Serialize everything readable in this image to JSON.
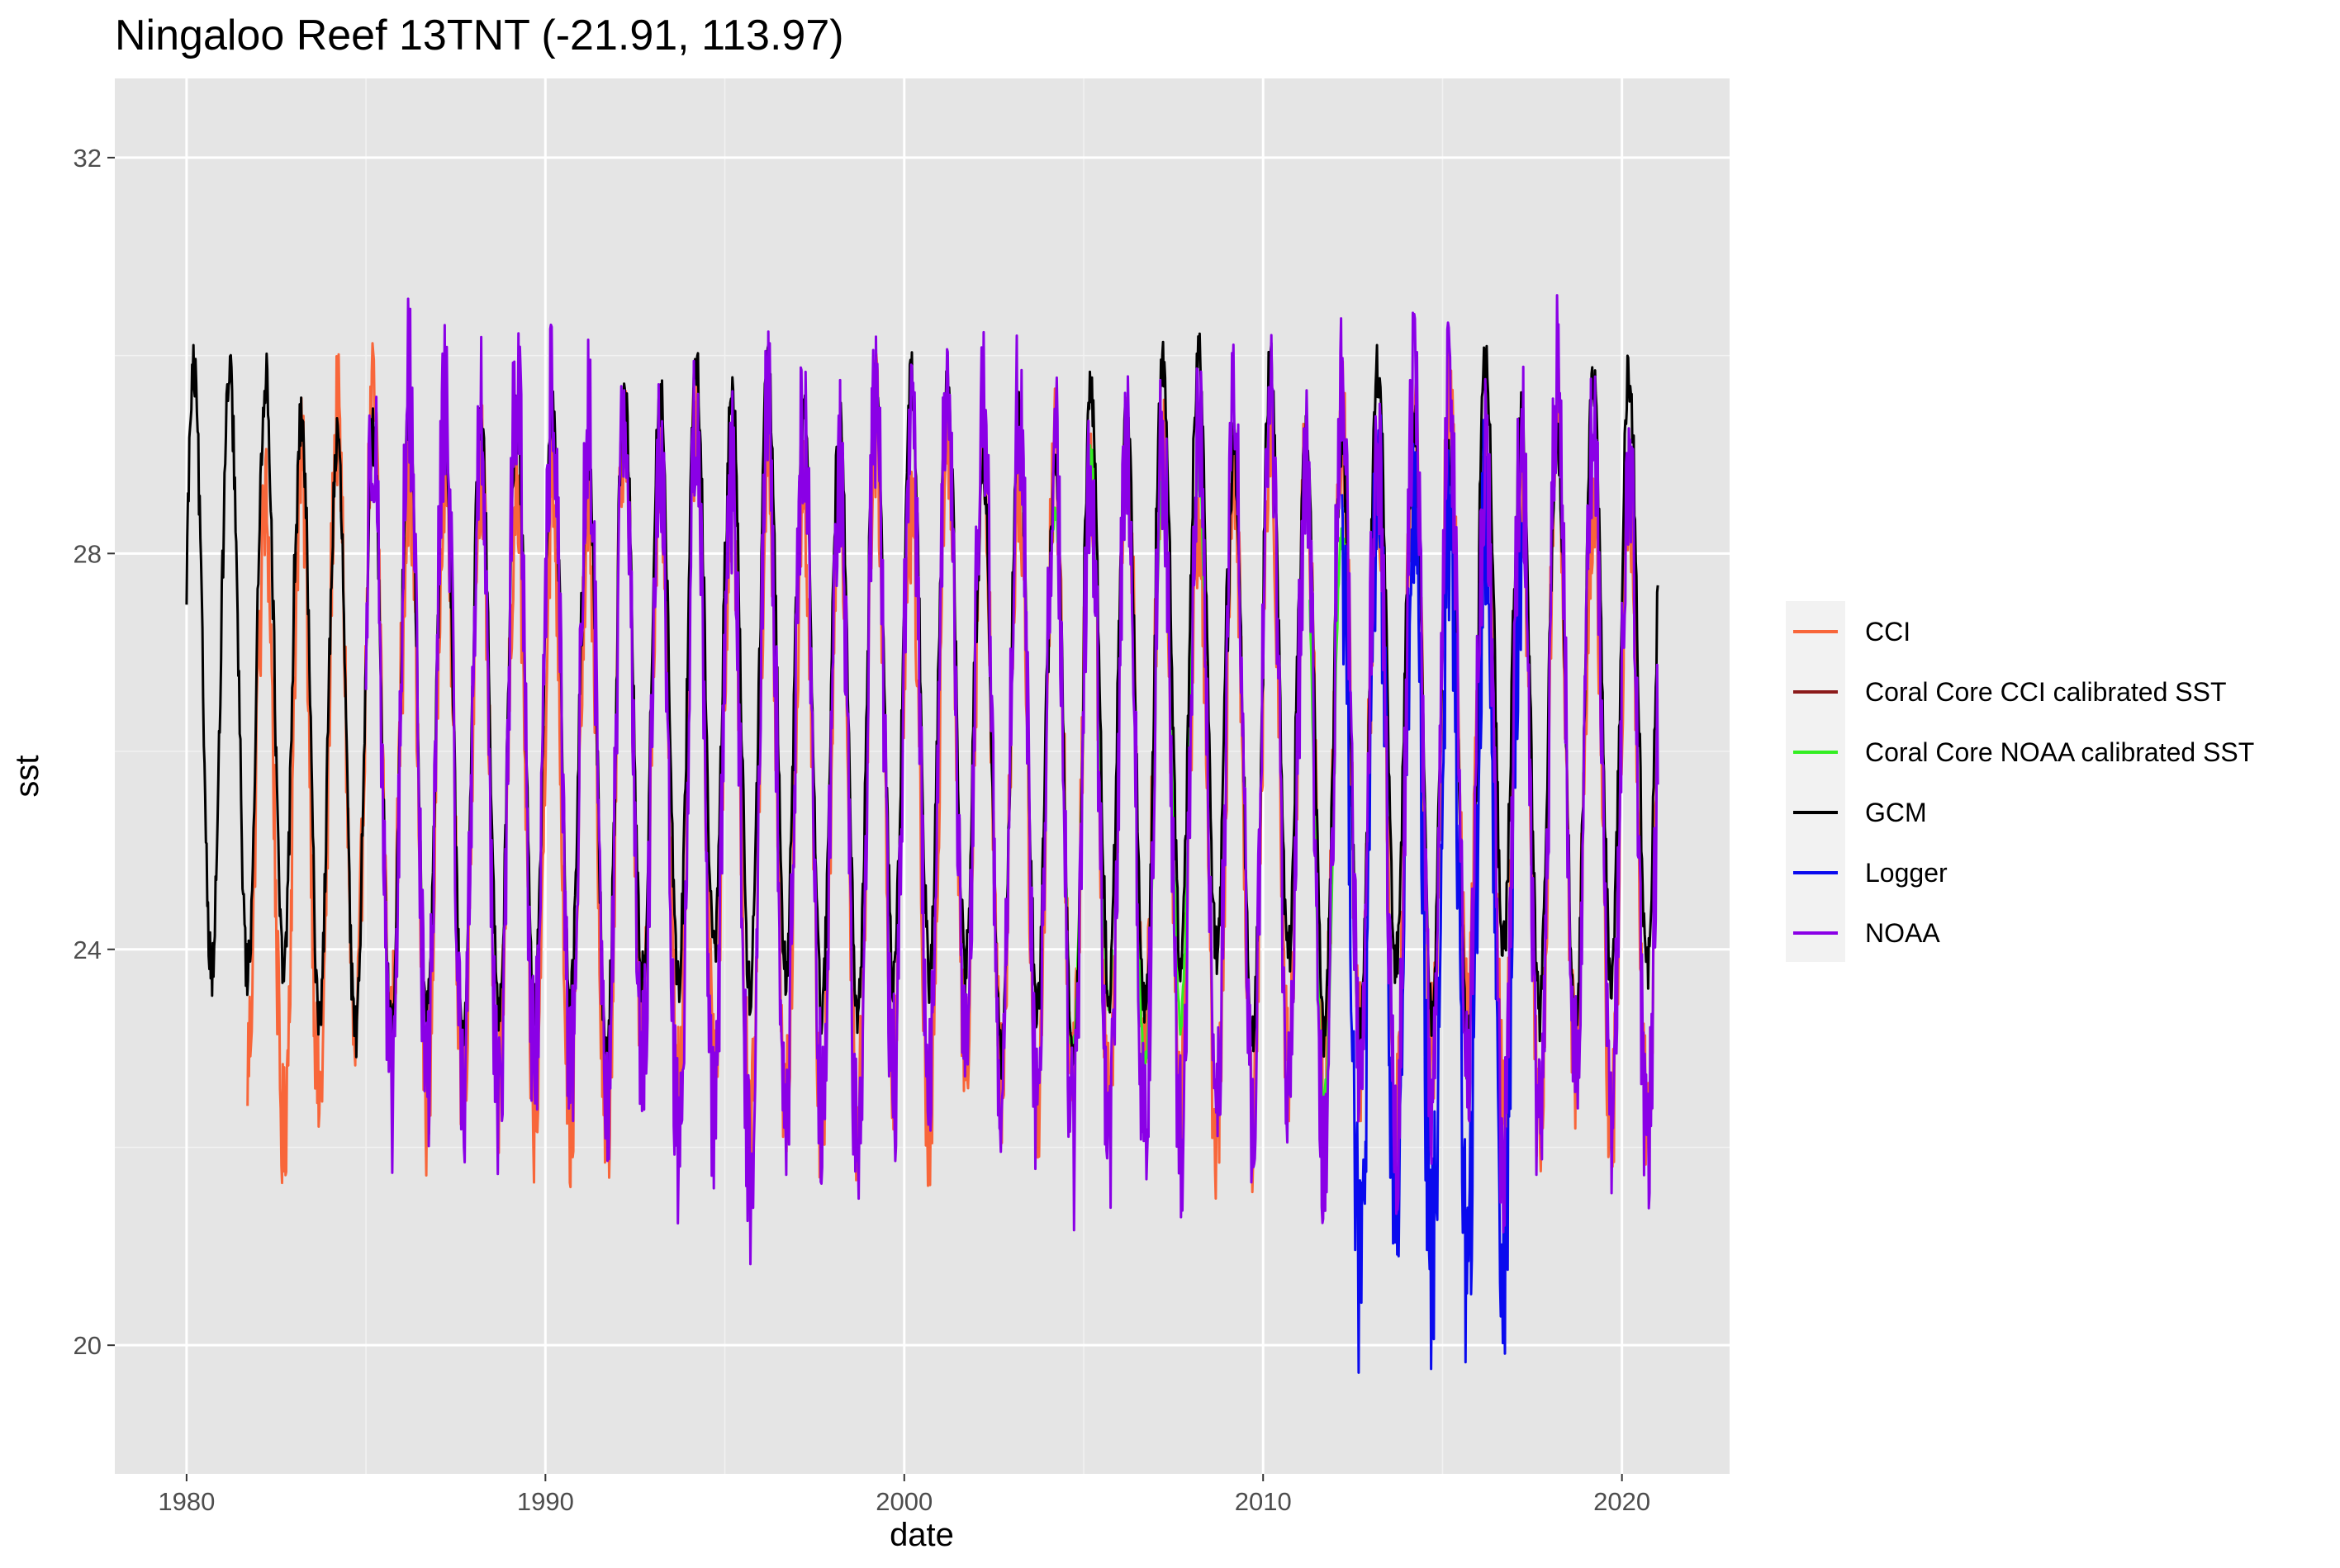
{
  "chart_data": {
    "type": "line",
    "title": "Ningaloo Reef 13TNT (-21.91, 113.97)",
    "xlabel": "date",
    "ylabel": "sst",
    "xlim": [
      1978.0,
      2023.0
    ],
    "ylim": [
      18.7,
      32.8
    ],
    "x_ticks": [
      1980,
      1990,
      2000,
      2010,
      2020
    ],
    "x_tick_labels": [
      "1980",
      "1990",
      "2000",
      "2010",
      "2020"
    ],
    "x_minor_ticks": [
      1985,
      1995,
      2005,
      2015
    ],
    "y_ticks": [
      20,
      24,
      28,
      32
    ],
    "y_tick_labels": [
      "20",
      "24",
      "28",
      "32"
    ],
    "y_minor_ticks": [
      22,
      26,
      30
    ],
    "grid": true,
    "panel_background": "#e5e5e5",
    "legend_position": "right",
    "series": [
      {
        "name": "CCI",
        "color": "#f8663a",
        "start": 1981.7,
        "end": 2021.0,
        "summer_peak": 29.0,
        "winter_trough": 22.6,
        "noise": 0.75
      },
      {
        "name": "Coral Core CCI calibrated SST",
        "color": "#8b1a1a",
        "start": null,
        "end": null,
        "summer_peak": null,
        "winter_trough": null,
        "noise": null
      },
      {
        "name": "Coral Core NOAA calibrated SST",
        "color": "#33ee22",
        "segments": [
          [
            2004.1,
            2005.8
          ],
          [
            2006.5,
            2008.4
          ],
          [
            2011.3,
            2012.3
          ]
        ],
        "summer_peak": 28.5,
        "winter_trough": 23.0,
        "noise": 0.15
      },
      {
        "name": "GCM",
        "color": "#000000",
        "start": 1980.0,
        "end": 2021.0,
        "summer_peak": 29.4,
        "winter_trough": 23.4,
        "noise": 0.3,
        "first_value": 27.8,
        "deepest_trough": 22.7,
        "highest_peak": 30.7
      },
      {
        "name": "Logger",
        "color": "#0a0aee",
        "start": 2012.2,
        "end": 2017.2,
        "summer_peak": 28.5,
        "winter_trough": 21.0,
        "noise": 1.2,
        "min": 19.3,
        "max": 30.8
      },
      {
        "name": "NOAA",
        "color": "#8a00e6",
        "start": 1985.0,
        "end": 2021.0,
        "summer_peak": 29.3,
        "winter_trough": 22.3,
        "noise": 0.95,
        "max": 31.8,
        "min": 20.8,
        "last_value": 28.2
      }
    ]
  }
}
